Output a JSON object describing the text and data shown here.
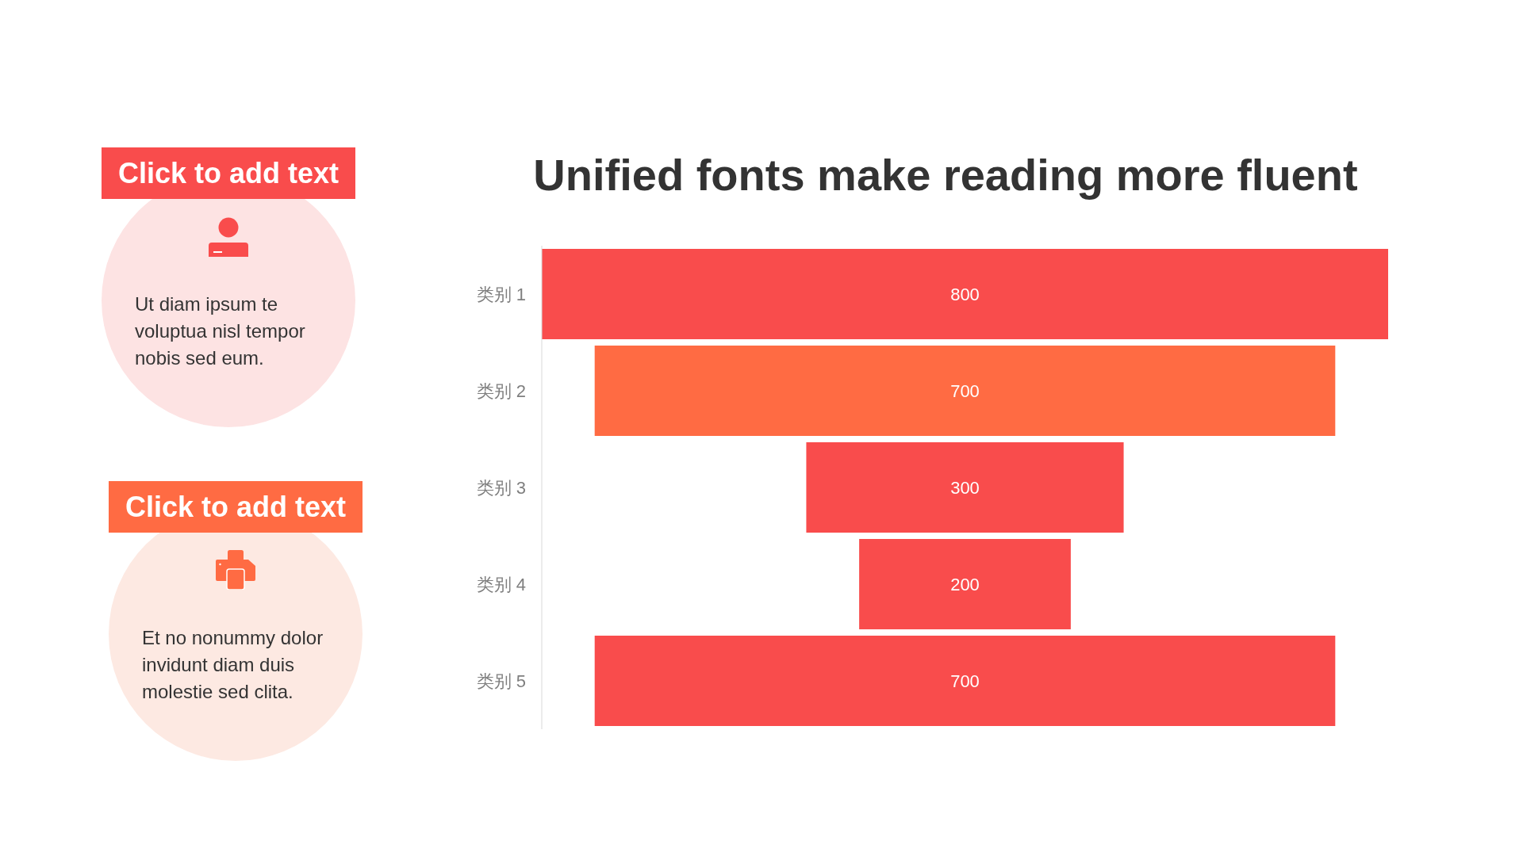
{
  "chart_data": [
    {
      "type": "other",
      "title": "Click to add text",
      "annotations": [
        "Ut diam ipsum te voluptua nisl tempor nobis sed eum."
      ]
    },
    {
      "type": "other",
      "title": "Click to add text",
      "annotations": [
        "Et no nonummy dolor invidunt diam duis molestie sed clita."
      ]
    },
    {
      "type": "other",
      "title": "Unified fonts make reading more fluent",
      "categories": [
        "类别 1",
        "类别 2",
        "类别 3",
        "类别 4",
        "类别 5"
      ],
      "values": [
        800,
        700,
        300,
        200,
        700
      ],
      "colors": [
        "#f94c4c",
        "#ff6b43",
        "#f94c4c",
        "#f94c4c",
        "#f94c4c"
      ],
      "data_labels": true
    }
  ]
}
